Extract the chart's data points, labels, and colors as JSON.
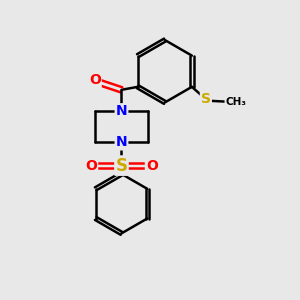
{
  "bg_color": "#e8e8e8",
  "bond_color": "#000000",
  "bond_width": 1.8,
  "atom_colors": {
    "O": "#ff0000",
    "N": "#0000ff",
    "S_thioether": "#ccaa00",
    "S_sulfonyl": "#ccaa00",
    "C": "#000000"
  },
  "figsize": [
    3.0,
    3.0
  ],
  "dpi": 100,
  "xlim": [
    0,
    10
  ],
  "ylim": [
    0,
    10
  ]
}
